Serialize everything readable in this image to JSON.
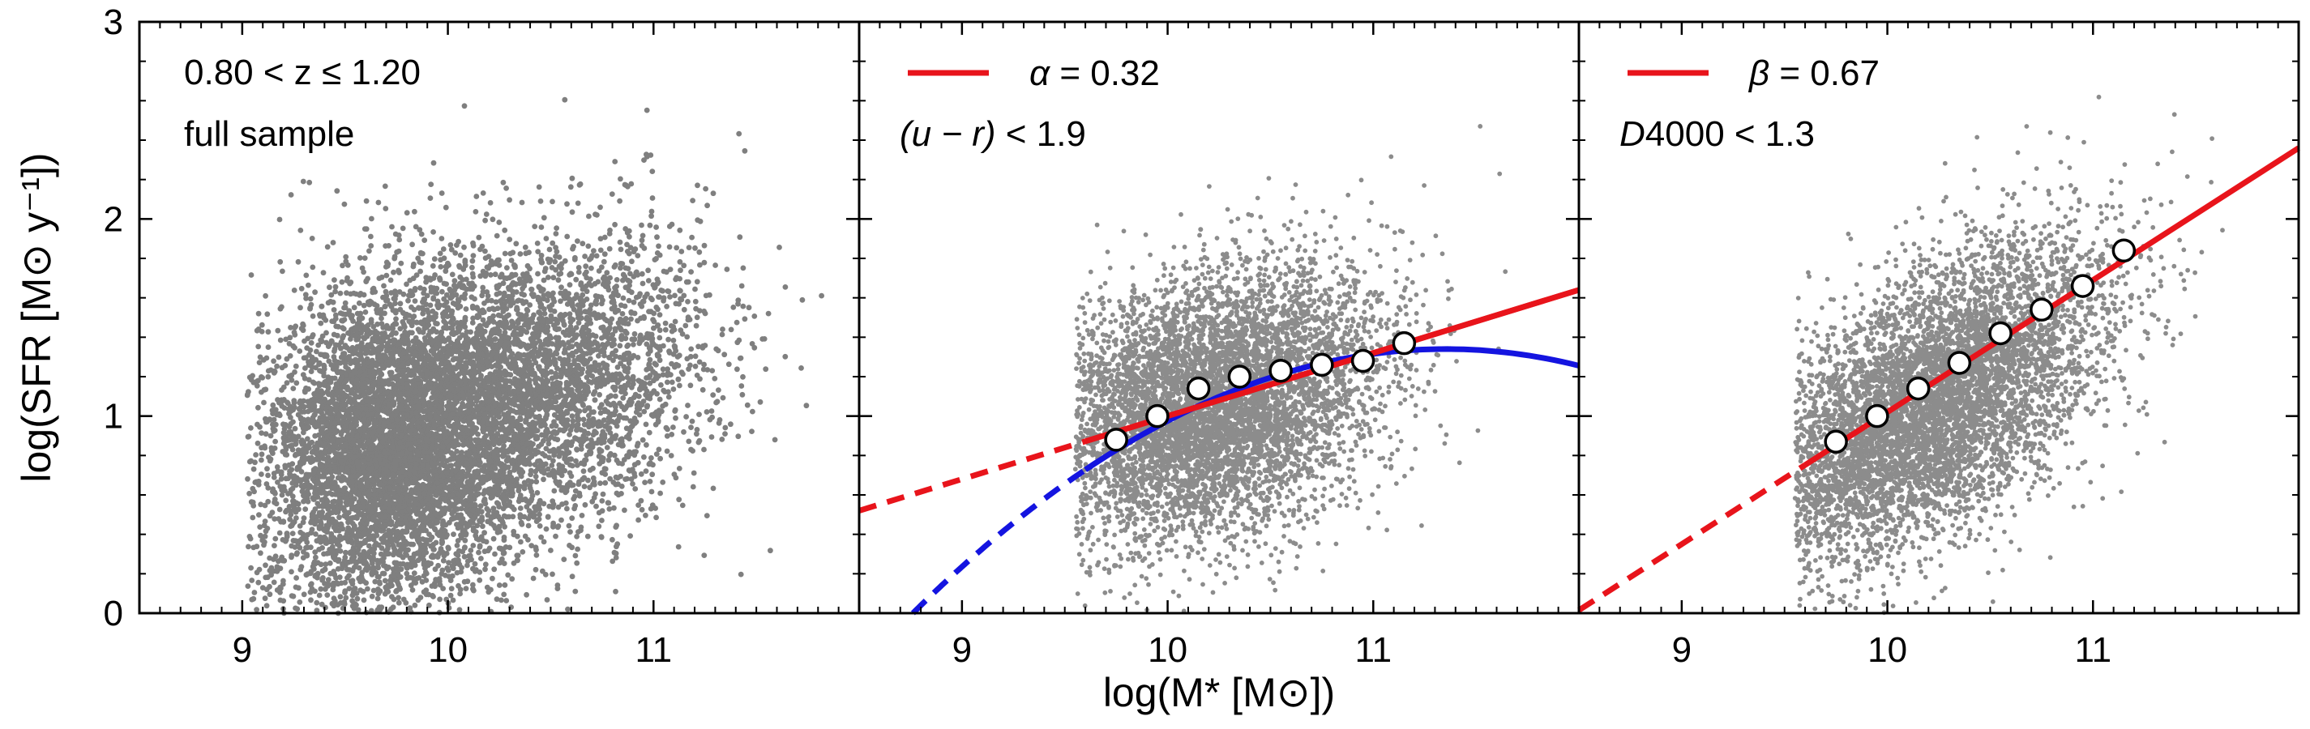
{
  "chart_data": {
    "type": "scatter",
    "ylabel": "log(SFR [M⊙ y⁻¹])",
    "xlabel": "log(M* [M⊙])",
    "xlim": [
      8.5,
      12.0
    ],
    "ylim": [
      0,
      3
    ],
    "x_ticks": [
      9,
      10,
      11
    ],
    "y_ticks": [
      0,
      1,
      2,
      3
    ],
    "panels": [
      {
        "id": "full",
        "title_line1": "0.80  < z  ≤ 1.20",
        "title_line2": "full sample",
        "scatter": {
          "color": "#7f7f7f",
          "n_points": 9000,
          "description_components": [
            {
              "mean_x": 9.7,
              "mean_y": 0.85,
              "sd_x": 0.32,
              "sd_y": 0.42,
              "weight": 0.55
            },
            {
              "mean_x": 10.35,
              "mean_y": 1.1,
              "sd_x": 0.45,
              "sd_y": 0.38,
              "weight": 0.45
            }
          ]
        }
      },
      {
        "id": "color-cut",
        "legend_symbol": "α",
        "legend_value": " = 0.32",
        "cut_text_prefix": "(u − r)",
        "cut_text_suffix": " < 1.9",
        "scatter": {
          "color": "#8c8c8c",
          "n_points": 6500
        },
        "linear_fit": {
          "color": "#e8141b",
          "slope": 0.32,
          "intercept_at_10": 1.0,
          "solid_range": [
            9.6,
            12.0
          ],
          "dashed_range": [
            8.5,
            9.6
          ]
        },
        "curved_fit": {
          "color": "#1414e0",
          "peak_x": 11.35,
          "peak_y": 1.34,
          "curvature": 0.2,
          "solid_range": [
            9.6,
            12.0
          ],
          "dashed_range": [
            8.65,
            9.6
          ]
        },
        "binned_medians": {
          "x": [
            9.75,
            9.95,
            10.15,
            10.35,
            10.55,
            10.75,
            10.95,
            11.15
          ],
          "y": [
            0.88,
            1.0,
            1.14,
            1.2,
            1.23,
            1.26,
            1.28,
            1.37
          ]
        }
      },
      {
        "id": "d4000-cut",
        "legend_symbol": "β",
        "legend_value": " = 0.67",
        "cut_text_prefix": "D",
        "cut_text_suffix": "4000 < 1.3",
        "scatter": {
          "color": "#8c8c8c",
          "n_points": 6500
        },
        "linear_fit": {
          "color": "#e8141b",
          "slope": 0.67,
          "intercept_at_10": 1.02,
          "solid_range": [
            9.6,
            12.0
          ],
          "dashed_range": [
            8.5,
            9.6
          ]
        },
        "binned_medians": {
          "x": [
            9.75,
            9.95,
            10.15,
            10.35,
            10.55,
            10.75,
            10.95,
            11.15
          ],
          "y": [
            0.87,
            1.0,
            1.14,
            1.27,
            1.42,
            1.54,
            1.66,
            1.84
          ]
        }
      }
    ]
  },
  "colors": {
    "scatter": "#7f7f7f",
    "fit_red": "#e8141b",
    "fit_blue": "#1414e0",
    "axis": "#000000"
  }
}
